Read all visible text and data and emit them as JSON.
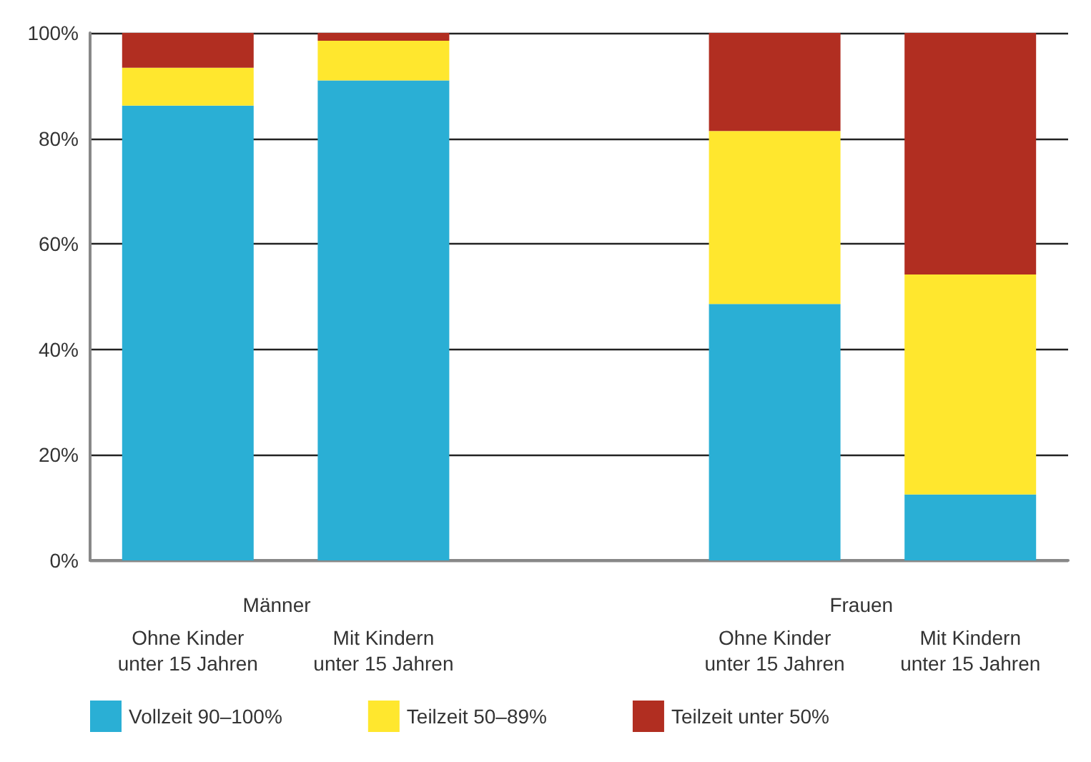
{
  "chart_data": {
    "type": "bar",
    "stacked": true,
    "categories": [
      "Ohne Kinder\nunter 15 Jahren",
      "Mit Kindern\nunter 15 Jahren",
      null,
      "Ohne Kinder\nunter 15 Jahren",
      "Mit Kindern\nunter 15 Jahren"
    ],
    "series": [
      {
        "name": "Vollzeit 90–100%",
        "color": "#2aafd5",
        "values": [
          86.2,
          91.0,
          null,
          48.6,
          12.5
        ]
      },
      {
        "name": "Teilzeit 50–89%",
        "color": "#ffe72e",
        "values": [
          7.2,
          7.5,
          null,
          32.8,
          41.7
        ]
      },
      {
        "name": "Teilzeit unter 50%",
        "color": "#b12e21",
        "values": [
          6.6,
          1.5,
          null,
          18.6,
          45.8
        ]
      }
    ],
    "annotations": [
      "Männer",
      "Frauen"
    ],
    "ylim": [
      0,
      100
    ],
    "yticks": [
      {
        "value": 0,
        "label": "0%"
      },
      {
        "value": 20,
        "label": "20%"
      },
      {
        "value": 40,
        "label": "40%"
      },
      {
        "value": 60,
        "label": "60%"
      },
      {
        "value": 80,
        "label": "80%"
      },
      {
        "value": 100,
        "label": "100%"
      }
    ],
    "grid": "y",
    "legend": "bottom left"
  }
}
